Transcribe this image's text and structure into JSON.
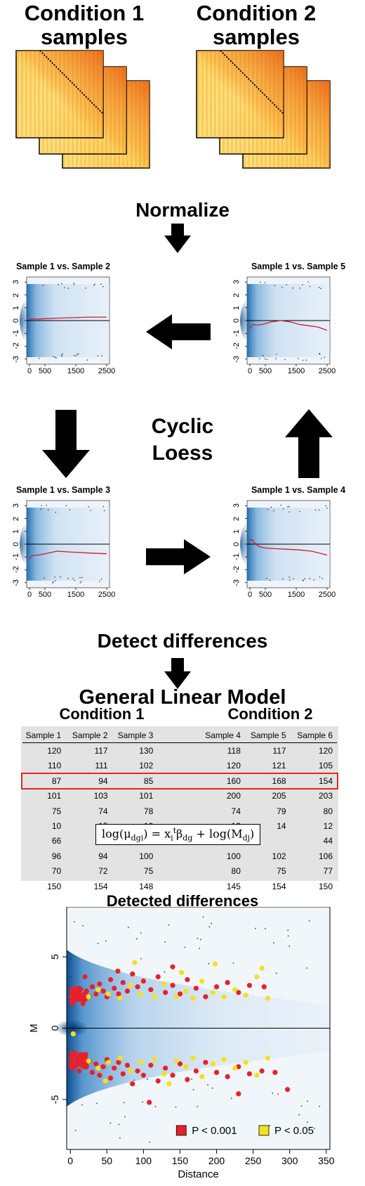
{
  "header": {
    "condition1": [
      "Condition 1",
      "samples"
    ],
    "condition2": [
      "Condition 2",
      "samples"
    ]
  },
  "steps": {
    "normalize": "Normalize",
    "method": [
      "Cyclic",
      "Loess"
    ],
    "detect": "Detect differences"
  },
  "ma_plots": [
    {
      "title": "Sample 1 vs. Sample 2",
      "yticks": [
        "3",
        "2",
        "1",
        "0",
        "-1",
        "-2",
        "-3"
      ],
      "xticks": [
        "0",
        "500",
        "1500",
        "2500"
      ],
      "loess": [
        [
          0,
          0.1
        ],
        [
          100,
          0.12
        ],
        [
          300,
          0.12
        ],
        [
          500,
          0.15
        ],
        [
          1000,
          0.2
        ],
        [
          1500,
          0.24
        ],
        [
          2000,
          0.27
        ],
        [
          2500,
          0.27
        ]
      ]
    },
    {
      "title": "Sample 1 vs. Sample 5",
      "yticks": [
        "3",
        "2",
        "1",
        "0",
        "-1",
        "-2",
        "-3"
      ],
      "xticks": [
        "0",
        "500",
        "1500",
        "2500"
      ],
      "loess": [
        [
          0,
          -0.6
        ],
        [
          100,
          -0.3
        ],
        [
          200,
          -0.35
        ],
        [
          400,
          -0.3
        ],
        [
          700,
          -0.1
        ],
        [
          1000,
          0.0
        ],
        [
          1300,
          -0.1
        ],
        [
          1600,
          -0.3
        ],
        [
          1900,
          -0.4
        ],
        [
          2200,
          -0.5
        ],
        [
          2500,
          -0.75
        ]
      ]
    },
    {
      "title": "Sample 1 vs. Sample 3",
      "yticks": [
        "3",
        "2",
        "1",
        "0",
        "-1",
        "-2",
        "-3"
      ],
      "xticks": [
        "0",
        "500",
        "1500",
        "2500"
      ],
      "loess": [
        [
          0,
          -1.1
        ],
        [
          100,
          -0.9
        ],
        [
          300,
          -0.85
        ],
        [
          600,
          -0.7
        ],
        [
          900,
          -0.55
        ],
        [
          1200,
          -0.6
        ],
        [
          1600,
          -0.65
        ],
        [
          2000,
          -0.7
        ],
        [
          2500,
          -0.75
        ]
      ]
    },
    {
      "title": "Sample 1 vs. Sample 4",
      "yticks": [
        "3",
        "2",
        "1",
        "0",
        "-1",
        "-2",
        "-3"
      ],
      "xticks": [
        "0",
        "500",
        "1500",
        "2500"
      ],
      "loess": [
        [
          0,
          0.3
        ],
        [
          80,
          0.35
        ],
        [
          150,
          0.1
        ],
        [
          300,
          -0.2
        ],
        [
          500,
          -0.3
        ],
        [
          800,
          -0.35
        ],
        [
          1200,
          -0.4
        ],
        [
          1600,
          -0.45
        ],
        [
          2000,
          -0.55
        ],
        [
          2500,
          -0.85
        ]
      ]
    }
  ],
  "glm": {
    "title": "General Linear Model",
    "condition1": "Condition 1",
    "condition2": "Condition 2",
    "columns": [
      "Sample 1",
      "Sample 2",
      "Sample 3",
      "Sample 4",
      "Sample 5",
      "Sample 6"
    ],
    "rows": [
      [
        "120",
        "117",
        "130",
        "118",
        "117",
        "120"
      ],
      [
        "110",
        "111",
        "102",
        "120",
        "121",
        "105"
      ],
      [
        "87",
        "94",
        "85",
        "160",
        "168",
        "154"
      ],
      [
        "101",
        "103",
        "101",
        "200",
        "205",
        "203"
      ],
      [
        "75",
        "74",
        "78",
        "74",
        "79",
        "80"
      ],
      [
        "10",
        "15",
        "12",
        "13",
        "14",
        "12"
      ],
      [
        "66",
        "",
        "",
        "",
        "",
        "44"
      ],
      [
        "96",
        "94",
        "100",
        "100",
        "102",
        "106"
      ],
      [
        "70",
        "72",
        "75",
        "80",
        "75",
        "77"
      ],
      [
        "150",
        "154",
        "148",
        "145",
        "154",
        "150"
      ]
    ],
    "highlighted_row": 2
  },
  "chart_data": {
    "type": "scatter",
    "title": "Detected differences",
    "xlabel": "Distance",
    "ylabel": "M",
    "xlim": [
      -5,
      355
    ],
    "ylim": [
      -8.5,
      8.5
    ],
    "xticks": [
      "0",
      "50",
      "100",
      "150",
      "200",
      "250",
      "300",
      "350"
    ],
    "yticks": [
      "5",
      "0",
      "-5"
    ],
    "legend": {
      "placement": "bottom-right",
      "entries": [
        "P < 0.001",
        "P < 0.05"
      ]
    },
    "series": [
      {
        "name": "P < 0.001",
        "color": "#e8202a",
        "points": [
          [
            1,
            2.2
          ],
          [
            3,
            2.6
          ],
          [
            5,
            1.9
          ],
          [
            7,
            2.4
          ],
          [
            10,
            2.1
          ],
          [
            12,
            2.8
          ],
          [
            15,
            2.3
          ],
          [
            18,
            2.0
          ],
          [
            22,
            2.6
          ],
          [
            26,
            2.2
          ],
          [
            30,
            2.9
          ],
          [
            35,
            2.4
          ],
          [
            40,
            3.1
          ],
          [
            45,
            2.6
          ],
          [
            50,
            2.2
          ],
          [
            55,
            3.4
          ],
          [
            60,
            2.8
          ],
          [
            66,
            2.4
          ],
          [
            72,
            3.2
          ],
          [
            78,
            2.6
          ],
          [
            85,
            3.8
          ],
          [
            92,
            2.9
          ],
          [
            100,
            3.3
          ],
          [
            110,
            2.7
          ],
          [
            120,
            3.6
          ],
          [
            130,
            2.5
          ],
          [
            140,
            3.0
          ],
          [
            150,
            2.4
          ],
          [
            160,
            3.4
          ],
          [
            172,
            2.8
          ],
          [
            185,
            2.2
          ],
          [
            200,
            2.9
          ],
          [
            215,
            3.2
          ],
          [
            230,
            2.5
          ],
          [
            245,
            3.0
          ],
          [
            265,
            2.9
          ],
          [
            20,
            3.6
          ],
          [
            65,
            4.0
          ],
          [
            140,
            4.3
          ],
          [
            1,
            -2.3
          ],
          [
            3,
            -2.8
          ],
          [
            5,
            -2.0
          ],
          [
            7,
            -2.5
          ],
          [
            10,
            -2.2
          ],
          [
            12,
            -3.0
          ],
          [
            15,
            -2.4
          ],
          [
            18,
            -2.1
          ],
          [
            22,
            -2.7
          ],
          [
            26,
            -2.3
          ],
          [
            30,
            -3.1
          ],
          [
            35,
            -2.5
          ],
          [
            40,
            -3.3
          ],
          [
            45,
            -2.7
          ],
          [
            50,
            -2.2
          ],
          [
            55,
            -3.5
          ],
          [
            60,
            -2.8
          ],
          [
            66,
            -2.4
          ],
          [
            72,
            -3.2
          ],
          [
            78,
            -2.6
          ],
          [
            85,
            -3.9
          ],
          [
            92,
            -3.0
          ],
          [
            100,
            -3.3
          ],
          [
            110,
            -2.6
          ],
          [
            120,
            -3.7
          ],
          [
            130,
            -2.8
          ],
          [
            140,
            -3.3
          ],
          [
            150,
            -2.5
          ],
          [
            160,
            -3.6
          ],
          [
            172,
            -3.0
          ],
          [
            185,
            -2.4
          ],
          [
            200,
            -3.1
          ],
          [
            215,
            -3.4
          ],
          [
            230,
            -2.7
          ],
          [
            245,
            -3.2
          ],
          [
            262,
            -3.0
          ],
          [
            280,
            -3.1
          ],
          [
            297,
            -4.3
          ],
          [
            108,
            -5.2
          ],
          [
            230,
            -4.6
          ]
        ]
      },
      {
        "name": "P < 0.05",
        "color": "#f5e020",
        "points": [
          [
            4,
            -0.4
          ],
          [
            25,
            2.2
          ],
          [
            38,
            2.7
          ],
          [
            52,
            2.4
          ],
          [
            68,
            2.1
          ],
          [
            82,
            3.0
          ],
          [
            96,
            2.4
          ],
          [
            115,
            2.2
          ],
          [
            128,
            3.1
          ],
          [
            145,
            2.2
          ],
          [
            158,
            2.6
          ],
          [
            168,
            2.1
          ],
          [
            180,
            3.3
          ],
          [
            195,
            2.5
          ],
          [
            210,
            2.2
          ],
          [
            225,
            2.7
          ],
          [
            240,
            2.3
          ],
          [
            255,
            3.6
          ],
          [
            270,
            2.1
          ],
          [
            198,
            4.5
          ],
          [
            88,
            4.6
          ],
          [
            152,
            3.9
          ],
          [
            262,
            4.2
          ],
          [
            25,
            -2.3
          ],
          [
            38,
            -2.8
          ],
          [
            52,
            -2.4
          ],
          [
            68,
            -2.1
          ],
          [
            82,
            -3.0
          ],
          [
            96,
            -2.4
          ],
          [
            115,
            -2.2
          ],
          [
            128,
            -3.2
          ],
          [
            145,
            -2.3
          ],
          [
            158,
            -2.7
          ],
          [
            168,
            -2.1
          ],
          [
            180,
            -3.4
          ],
          [
            195,
            -2.5
          ],
          [
            210,
            -2.2
          ],
          [
            225,
            -2.8
          ],
          [
            240,
            -2.4
          ],
          [
            255,
            -3.3
          ],
          [
            270,
            -2.1
          ],
          [
            135,
            -3.9
          ],
          [
            48,
            -3.7
          ]
        ]
      }
    ]
  },
  "colors": {
    "heatmap_hot": "#ffd55a",
    "heatmap_cold": "#ec6c18",
    "blue_density": "#1f6fb3",
    "loess_line": "#d01c2a",
    "highlight_border": "#e02828",
    "table_bg": "#e3e3e3"
  }
}
